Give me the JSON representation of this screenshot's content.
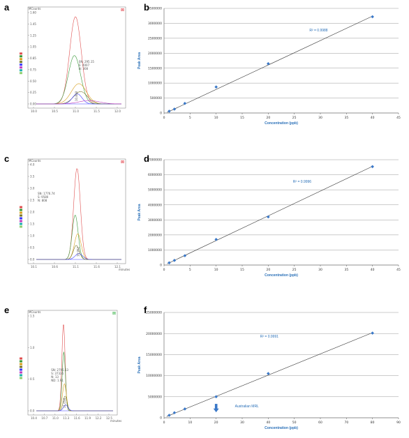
{
  "panels": [
    "a",
    "b",
    "c",
    "d",
    "e",
    "f"
  ],
  "chromatograms": [
    {
      "panel": "a",
      "y_title": "MCounts",
      "x_title": "",
      "y_ticks": [
        "1.60",
        "1.45",
        "1.25",
        "1.05",
        "0.85",
        "0.75",
        "0.50",
        "0.25",
        "0.00"
      ],
      "x_ticks": [
        "10.0",
        "10.5",
        "11.0",
        "11.5",
        "12.0"
      ],
      "info": [
        "SN: 295.15",
        "S: 4007",
        "N: 308"
      ],
      "peak_label": "10.848",
      "corner_mark": "⊠",
      "corner_color": "#e0303a",
      "xlim": [
        9.7,
        12.2
      ],
      "ylim": [
        0,
        1.6
      ],
      "baseline_color": "#3a3aff",
      "traces": [
        {
          "color": "#e05050",
          "center": 10.85,
          "width": 0.17,
          "height": 1.55
        },
        {
          "color": "#3a9a3a",
          "center": 10.82,
          "width": 0.18,
          "height": 0.86
        },
        {
          "color": "#d8a020",
          "center": 10.95,
          "width": 0.22,
          "height": 0.36
        },
        {
          "color": "#7a7a2a",
          "center": 11.0,
          "width": 0.2,
          "height": 0.22
        },
        {
          "color": "#3a3aff",
          "center": 10.9,
          "width": 0.14,
          "height": 0.18
        },
        {
          "color": "#c040c0",
          "center": 11.25,
          "width": 0.3,
          "height": 0.06
        }
      ]
    },
    {
      "panel": "c",
      "y_title": "MCounts",
      "x_title": "minutes",
      "y_ticks": [
        "4.0",
        "3.5",
        "3.0",
        "2.5",
        "2.0",
        "1.5",
        "1.0",
        "0.5",
        "0.0"
      ],
      "x_ticks": [
        "10.1",
        "10.6",
        "11.1",
        "11.6",
        "12.1"
      ],
      "info": [
        "SN: 1776.74",
        "S: 9580",
        "N: 808"
      ],
      "peak_label": "10.952",
      "corner_mark": "⊠",
      "corner_color": "#e0303a",
      "xlim": [
        9.9,
        12.2
      ],
      "ylim": [
        0,
        4.0
      ],
      "baseline_color": "#3a3aff",
      "traces": [
        {
          "color": "#e05050",
          "center": 11.0,
          "width": 0.09,
          "height": 3.9
        },
        {
          "color": "#3a9a3a",
          "center": 10.95,
          "width": 0.08,
          "height": 1.9
        },
        {
          "color": "#d8a020",
          "center": 11.02,
          "width": 0.09,
          "height": 1.1
        },
        {
          "color": "#7a7a2a",
          "center": 10.98,
          "width": 0.08,
          "height": 0.6
        },
        {
          "color": "#3a3aff",
          "center": 11.05,
          "width": 0.1,
          "height": 0.25
        }
      ]
    },
    {
      "panel": "e",
      "y_title": "MCounts",
      "x_title": "minutes",
      "y_ticks": [
        "1.5",
        "1.0",
        "0.5",
        "0.0"
      ],
      "x_ticks": [
        "10.4",
        "10.7",
        "11.0",
        "11.3",
        "11.6",
        "11.9",
        "12.2",
        "12.5"
      ],
      "info": [
        "SN: 2795.13",
        "S: 37336",
        "N: 13",
        "ND: 1.91"
      ],
      "peak_label": "11.058",
      "corner_mark": "⊠",
      "corner_color": "#30b040",
      "xlim": [
        10.2,
        12.6
      ],
      "ylim": [
        0,
        1.9
      ],
      "baseline_color": "#3a3aff",
      "traces": [
        {
          "color": "#e05050",
          "center": 11.05,
          "width": 0.05,
          "height": 1.78
        },
        {
          "color": "#3a9a3a",
          "center": 11.06,
          "width": 0.05,
          "height": 1.2
        },
        {
          "color": "#d8a020",
          "center": 11.08,
          "width": 0.06,
          "height": 0.55
        },
        {
          "color": "#7a7a2a",
          "center": 11.1,
          "width": 0.06,
          "height": 0.3
        },
        {
          "color": "#3a3aff",
          "center": 11.12,
          "width": 0.07,
          "height": 0.12
        }
      ]
    }
  ],
  "legend_swatches": [
    "#e05050",
    "#3a9a3a",
    "#d8a020",
    "#7a7a2a",
    "#3a3aff",
    "#c040c0",
    "#20b0b0",
    "#90d070"
  ],
  "chart_data": [
    {
      "panel": "b",
      "type": "scatter",
      "title": "",
      "xlabel": "Concentration (ppb)",
      "ylabel": "Peak Area",
      "xlim": [
        0,
        45
      ],
      "ylim": [
        0,
        3500000
      ],
      "x_ticks": [
        0,
        5,
        10,
        15,
        20,
        25,
        30,
        35,
        40,
        45
      ],
      "y_ticks": [
        0,
        500000,
        1000000,
        1500000,
        2000000,
        2500000,
        3000000,
        3500000
      ],
      "y_tick_labels": [
        "0",
        "500000",
        "1000000",
        "1500000",
        "2000000",
        "2500000",
        "3000000",
        "3500000"
      ],
      "x": [
        1,
        2,
        4,
        10,
        20,
        40
      ],
      "y": [
        60000,
        130000,
        320000,
        870000,
        1650000,
        3220000
      ],
      "trendline": [
        [
          0.6,
          20000
        ],
        [
          40,
          3240000
        ]
      ],
      "r_squared_label": "R² = 0.9988",
      "annotation": "",
      "grid": true
    },
    {
      "panel": "d",
      "type": "scatter",
      "title": "",
      "xlabel": "Concentration (ppb)",
      "ylabel": "Peak Area",
      "xlim": [
        0,
        45
      ],
      "ylim": [
        0,
        7000000
      ],
      "x_ticks": [
        0,
        5,
        10,
        15,
        20,
        25,
        30,
        35,
        40,
        45
      ],
      "y_ticks": [
        0,
        1000000,
        2000000,
        3000000,
        4000000,
        5000000,
        6000000,
        7000000
      ],
      "y_tick_labels": [
        "0",
        "1000000",
        "2000000",
        "3000000",
        "4000000",
        "5000000",
        "6000000",
        "7000000"
      ],
      "x": [
        1,
        2,
        4,
        10,
        20,
        40
      ],
      "y": [
        150000,
        310000,
        620000,
        1700000,
        3200000,
        6540000
      ],
      "trendline": [
        [
          0.6,
          80000
        ],
        [
          40,
          6560000
        ]
      ],
      "r_squared_label": "R² = 0.9996",
      "annotation": "",
      "grid": true
    },
    {
      "panel": "f",
      "type": "scatter",
      "title": "",
      "xlabel": "Concentration (ppb)",
      "ylabel": "Peak Area",
      "xlim": [
        0,
        90
      ],
      "ylim": [
        0,
        25000000
      ],
      "x_ticks": [
        0,
        10,
        20,
        30,
        40,
        50,
        60,
        70,
        80,
        90
      ],
      "y_ticks": [
        0,
        5000000,
        10000000,
        15000000,
        20000000,
        25000000
      ],
      "y_tick_labels": [
        "0",
        "5000000",
        "10000000",
        "15000000",
        "20000000",
        "25000000"
      ],
      "x": [
        2,
        4,
        8,
        20,
        40,
        80
      ],
      "y": [
        600000,
        1200000,
        2100000,
        5000000,
        10500000,
        20100000
      ],
      "trendline": [
        [
          1,
          300000
        ],
        [
          80,
          20200000
        ]
      ],
      "r_squared_label": "R² = 0.9991",
      "annotation": "Australian MRL",
      "annotation_arrow": {
        "x": 20,
        "y_top": 3300000,
        "y_bottom": 1300000
      },
      "grid": true
    }
  ]
}
